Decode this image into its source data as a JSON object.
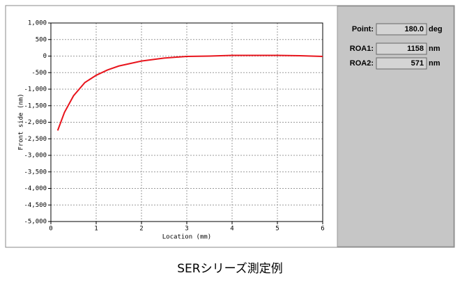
{
  "chart_data": {
    "type": "line",
    "xlabel": "Location (mm)",
    "ylabel": "Front side (nm)",
    "x": [
      0.15,
      0.3,
      0.5,
      0.75,
      1,
      1.25,
      1.5,
      2,
      2.5,
      3,
      3.5,
      4,
      4.5,
      5,
      5.5,
      6
    ],
    "values": [
      -2250,
      -1700,
      -1200,
      -800,
      -580,
      -420,
      -300,
      -150,
      -60,
      -10,
      0,
      20,
      20,
      20,
      10,
      -10
    ],
    "color": "#e8141c",
    "xlim": [
      0,
      6
    ],
    "xticks": [
      0,
      1,
      2,
      3,
      4,
      5,
      6
    ],
    "ylim": [
      -5000,
      1000
    ],
    "yticks": [
      {
        "value": 1000,
        "label": "1,000"
      },
      500,
      0,
      -500,
      {
        "value": -1000,
        "label": "-1,000"
      },
      {
        "value": -1500,
        "label": "-1,500"
      },
      {
        "value": -2000,
        "label": "-2,000"
      },
      {
        "value": -2500,
        "label": "-2,500"
      },
      {
        "value": -3000,
        "label": "-3,000"
      },
      {
        "value": -3500,
        "label": "-3,500"
      },
      {
        "value": -4000,
        "label": "-4,000"
      },
      {
        "value": -4500,
        "label": "-4,500"
      },
      {
        "value": -5000,
        "label": "-5,000"
      }
    ],
    "grid": true
  },
  "panel": {
    "fields": [
      {
        "label": "Point:",
        "value": "180.0",
        "unit": "deg"
      },
      {
        "label": "ROA1:",
        "value": "1158",
        "unit": "nm"
      },
      {
        "label": "ROA2:",
        "value": "571",
        "unit": "nm"
      }
    ]
  },
  "caption": "SERシリーズ測定例"
}
